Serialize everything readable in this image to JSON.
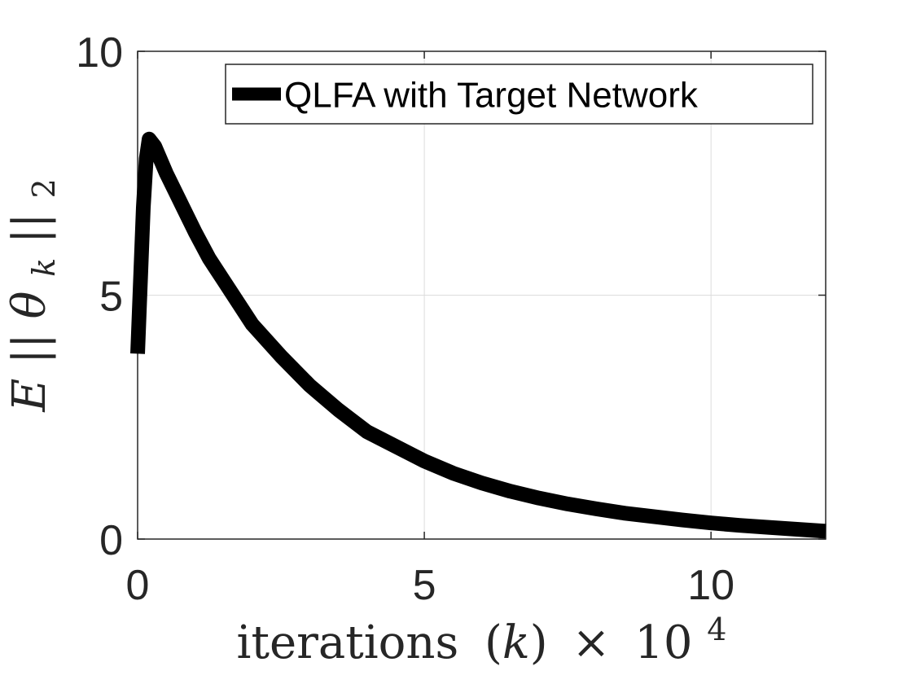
{
  "chart_data": {
    "type": "line",
    "xlabel": "iterations (k) × 10^4",
    "xlabel_parts": {
      "text": "iterations",
      "paren": "(k)",
      "times": "×",
      "base": "10",
      "exp": "4"
    },
    "ylabel": "E||θ_k||_2",
    "ylabel_parts": {
      "E": "E",
      "bars": "||",
      "theta": "θ",
      "sub_k": "k",
      "bars2": "||",
      "sub_2": "2"
    },
    "xlim": [
      0,
      12
    ],
    "ylim": [
      0,
      10
    ],
    "xticks": [
      "0",
      "5",
      "10"
    ],
    "xtick_values": [
      0,
      5,
      10
    ],
    "yticks": [
      "0",
      "5",
      "10"
    ],
    "ytick_values": [
      0,
      5,
      10
    ],
    "grid": true,
    "legend_position": "top-right",
    "colors": {
      "line": "#000000",
      "grid": "#dcdcdc",
      "axes": "#262626"
    },
    "series": [
      {
        "name": "QLFA with Target Network",
        "x": [
          0,
          0.05,
          0.1,
          0.15,
          0.2,
          0.3,
          0.5,
          0.75,
          1.0,
          1.25,
          1.5,
          2.0,
          2.5,
          3.0,
          3.5,
          4.0,
          4.5,
          5.0,
          5.5,
          6.0,
          6.5,
          7.0,
          7.5,
          8.0,
          8.5,
          9.0,
          9.5,
          10.0,
          10.5,
          11.0,
          11.5,
          12.0
        ],
        "y": [
          3.8,
          5.3,
          6.8,
          7.8,
          8.2,
          8.05,
          7.5,
          6.9,
          6.3,
          5.75,
          5.3,
          4.4,
          3.75,
          3.15,
          2.65,
          2.2,
          1.9,
          1.6,
          1.35,
          1.15,
          0.98,
          0.84,
          0.72,
          0.62,
          0.53,
          0.46,
          0.39,
          0.33,
          0.28,
          0.24,
          0.2,
          0.16
        ]
      }
    ]
  }
}
